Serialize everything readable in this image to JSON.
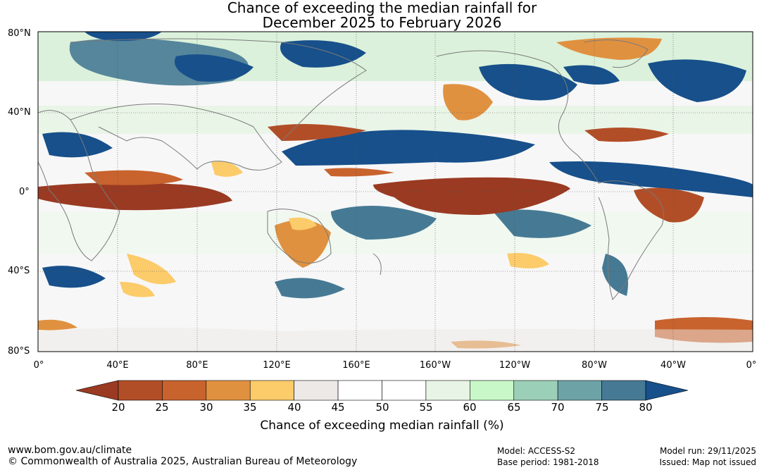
{
  "title_line1": "Chance of exceeding the median rainfall for",
  "title_line2": "December 2025 to February 2026",
  "lat_labels": [
    "80°N",
    "40°N",
    "0°",
    "40°S",
    "80°S"
  ],
  "lon_labels": [
    "0°",
    "40°E",
    "80°E",
    "120°E",
    "160°E",
    "160°W",
    "120°W",
    "80°W",
    "40°W",
    "0°"
  ],
  "colorbar": {
    "ticks": [
      "20",
      "25",
      "30",
      "35",
      "40",
      "45",
      "50",
      "55",
      "60",
      "65",
      "70",
      "75",
      "80"
    ],
    "colors": [
      "#9a3a22",
      "#b24e27",
      "#c8632e",
      "#e09140",
      "#fccb6a",
      "#ede9e6",
      "#ffffff",
      "#ffffff",
      "#e8f4e6",
      "#c9f8c8",
      "#9ccfb8",
      "#6da3a7",
      "#467a94",
      "#17508b",
      "#17508b"
    ],
    "below_color": "#9a3a22",
    "above_color": "#17508b",
    "label": "Chance of exceeding median rainfall (%)"
  },
  "footer": {
    "url": "www.bom.gov.au/climate",
    "copyright": "© Commonwealth of Australia 2025, Australian Bureau of Meteorology",
    "model": "Model: ACCESS-S2",
    "base_period": "Base period: 1981-2018",
    "model_run": "Model run: 29/11/2025",
    "issued": "Issued: Map not issued"
  }
}
